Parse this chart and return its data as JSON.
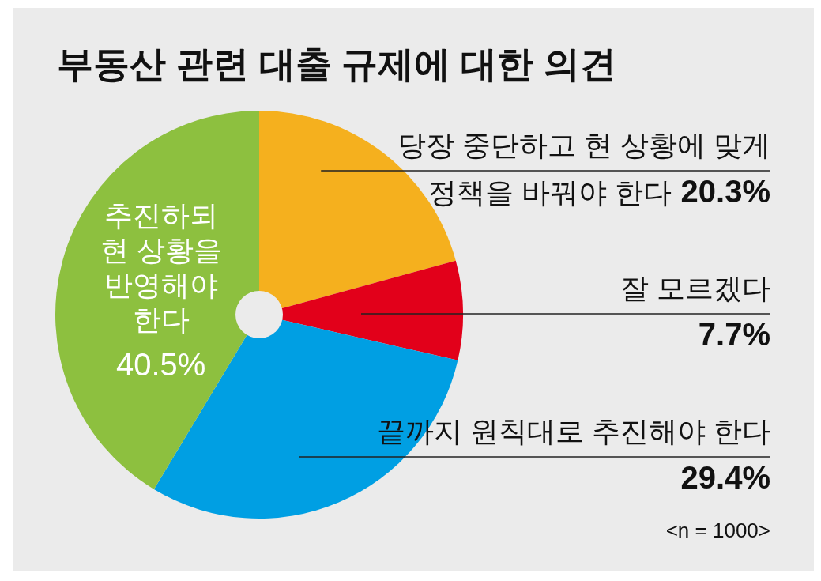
{
  "chart_data": {
    "type": "pie",
    "title": "부동산 관련 대출 규제에 대한 의견",
    "categories": [
      "당장 중단하고 현 상황에 맞게 정책을 바꿔야 한다",
      "잘 모르겠다",
      "끝까지 원칙대로 추진해야 한다",
      "추진하되 현 상황을 반영해야 한다"
    ],
    "values": [
      20.3,
      7.7,
      29.4,
      40.5
    ],
    "colors": [
      "#f5b01e",
      "#e2001a",
      "#009fe3",
      "#8dc03f"
    ],
    "value_labels": [
      "20.3%",
      "7.7%",
      "29.4%",
      "40.5%"
    ],
    "annotations": [
      "<n = 1000>"
    ]
  }
}
